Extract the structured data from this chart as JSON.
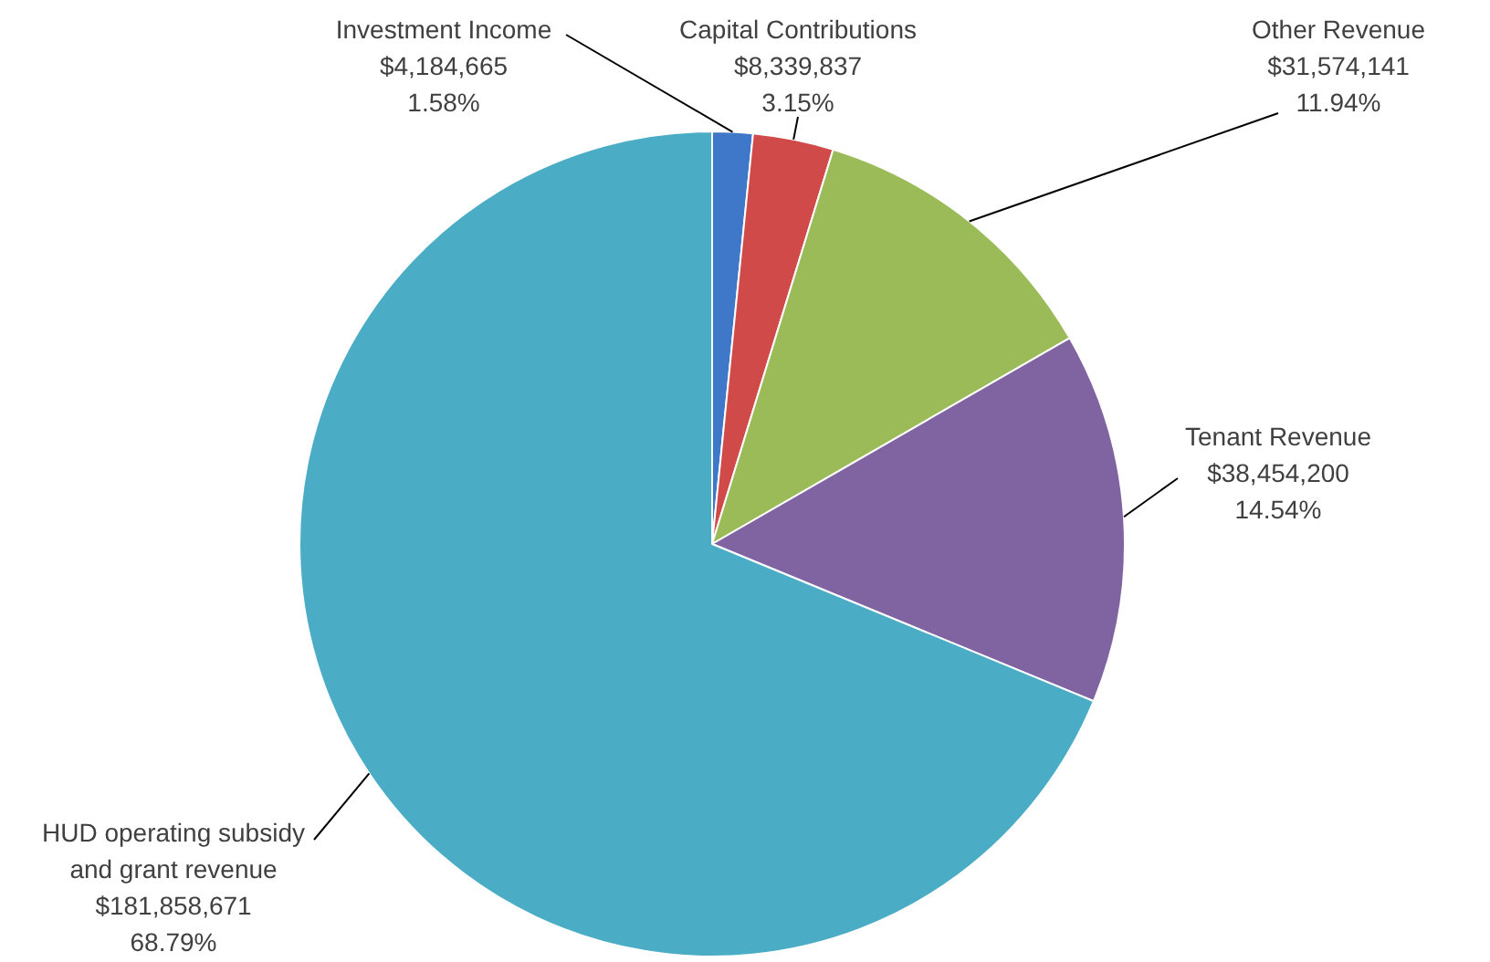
{
  "chart_data": {
    "type": "pie",
    "categories": [
      "Investment Income",
      "Capital Contributions",
      "Other Revenue",
      "Tenant Revenue",
      "HUD operating subsidy and grant revenue"
    ],
    "values": [
      4184665,
      8339837,
      31574141,
      38454200,
      181858671
    ],
    "value_labels": [
      "$4,184,665\n1.58%",
      "$8,339,837\n3.15%",
      "$31,574,141\n11.94%",
      "$38,454,200\n14.54%",
      "$181,858,671\n68.79%"
    ],
    "colors": [
      "#3f78c8",
      "#d04a4a",
      "#9bbb59",
      "#8064a2",
      "#4bacc6"
    ],
    "legend": false
  }
}
